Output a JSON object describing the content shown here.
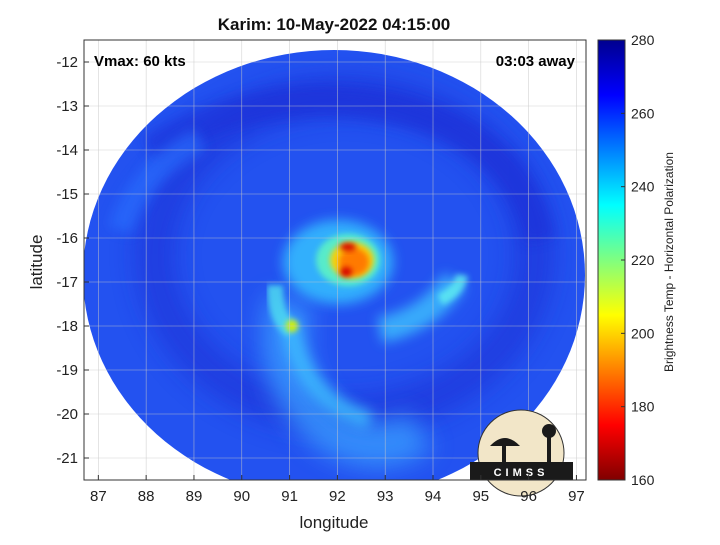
{
  "chart_data": {
    "type": "heatmap",
    "title": "Karim: 10-May-2022 04:15:00",
    "xlabel": "longitude",
    "ylabel": "latitude",
    "xlim": [
      86.7,
      97.2
    ],
    "ylim": [
      -21.5,
      -11.5
    ],
    "xticks": [
      87,
      88,
      89,
      90,
      91,
      92,
      93,
      94,
      95,
      96,
      97
    ],
    "yticks": [
      -12,
      -13,
      -14,
      -15,
      -16,
      -17,
      -18,
      -19,
      -20,
      -21
    ],
    "grid": true,
    "annotations": {
      "top_left": "Vmax: 60 kts",
      "top_right": "03:03 away"
    },
    "colorbar": {
      "label": "Brightness Temp - Horizontal Polarization",
      "min": 160,
      "max": 280,
      "ticks": [
        160,
        180,
        200,
        220,
        240,
        260,
        280
      ],
      "colormap": "jet"
    },
    "scan_region": {
      "center_lon": 92.0,
      "center_lat": -16.5,
      "background_value": 268
    },
    "features": [
      {
        "name": "eye core",
        "lon": 92.35,
        "lat": -16.55,
        "value": 185
      },
      {
        "name": "eyewall ring",
        "lon": 92.15,
        "lat": -16.6,
        "value": 228
      },
      {
        "name": "inner rainband",
        "lon": 91.3,
        "lat": -17.7,
        "value": 232
      },
      {
        "name": "eastern band",
        "lon": 94.2,
        "lat": -17.6,
        "value": 240
      },
      {
        "name": "southern band",
        "lon": 92.0,
        "lat": -19.8,
        "value": 248
      }
    ],
    "logo_text": "CIMSS"
  }
}
